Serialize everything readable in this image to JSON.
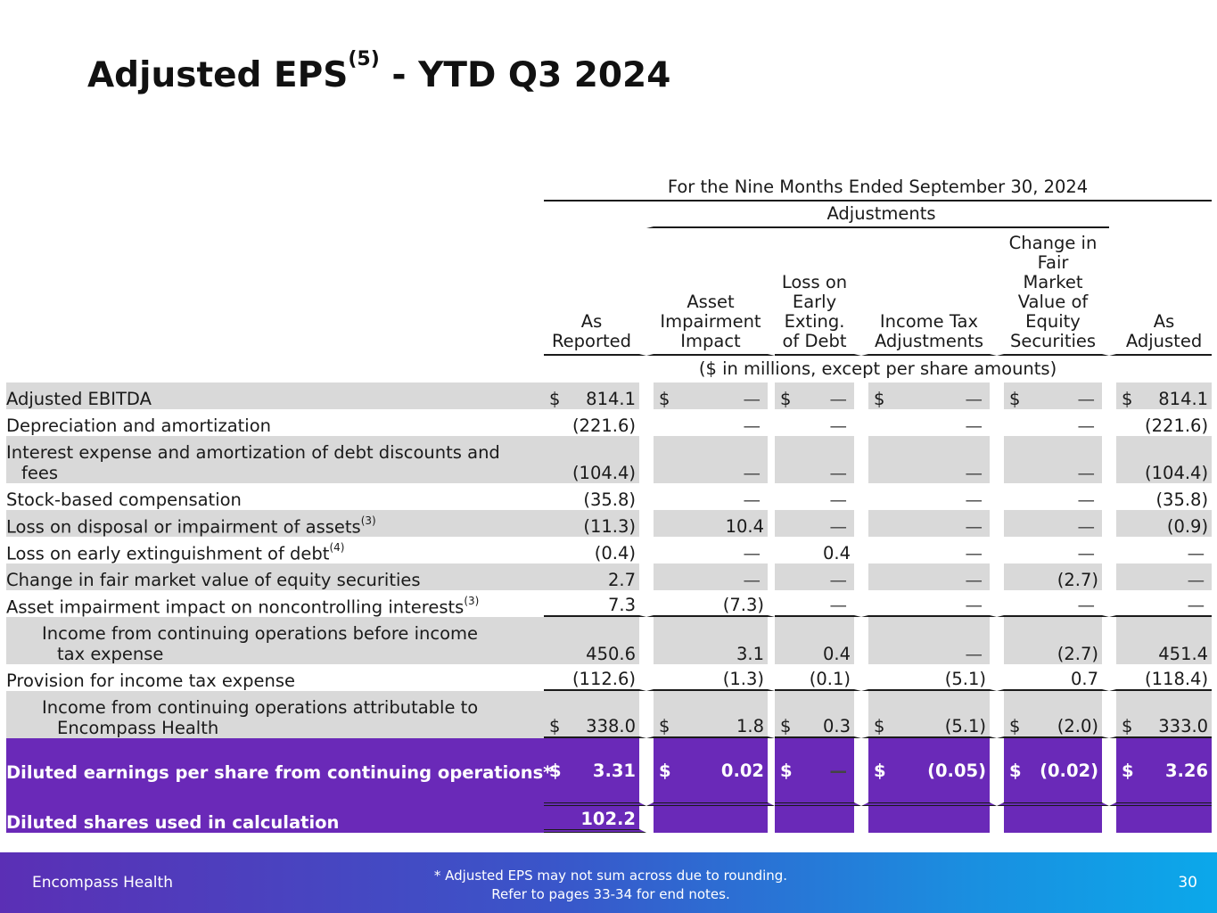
{
  "title": {
    "main": "Adjusted EPS",
    "sup": "(5)",
    "rest": " - YTD Q3 2024"
  },
  "header": {
    "period": "For the Nine Months Ended September 30, 2024",
    "adjustments": "Adjustments",
    "columns": [
      [
        "As",
        "Reported"
      ],
      [
        "Asset",
        "Impairment",
        "Impact"
      ],
      [
        "Loss on",
        "Early",
        "Exting.",
        "of Debt"
      ],
      [
        "Income Tax",
        "Adjustments"
      ],
      [
        "Change in",
        "Fair",
        "Market",
        "Value of",
        "Equity",
        "Securities"
      ],
      [
        "As",
        "Adjusted"
      ]
    ],
    "units": "($ in millions, except per share amounts)"
  },
  "rows": [
    {
      "label": "Adjusted EBITDA",
      "sup": "",
      "values": [
        "814.1",
        "—",
        "—",
        "—",
        "—",
        "814.1"
      ]
    },
    {
      "label": "Depreciation and amortization",
      "sup": "",
      "values": [
        "(221.6)",
        "—",
        "—",
        "—",
        "—",
        "(221.6)"
      ]
    },
    {
      "label": "Interest expense and amortization of debt discounts and",
      "label2": "fees",
      "sup": "",
      "values": [
        "(104.4)",
        "—",
        "—",
        "—",
        "—",
        "(104.4)"
      ]
    },
    {
      "label": "Stock-based compensation",
      "sup": "",
      "values": [
        "(35.8)",
        "—",
        "—",
        "—",
        "—",
        "(35.8)"
      ]
    },
    {
      "label": "Loss on disposal or impairment of assets",
      "sup": "(3)",
      "values": [
        "(11.3)",
        "10.4",
        "—",
        "—",
        "—",
        "(0.9)"
      ]
    },
    {
      "label": "Loss on early extinguishment of debt",
      "sup": "(4)",
      "values": [
        "(0.4)",
        "—",
        "0.4",
        "—",
        "—",
        "—"
      ]
    },
    {
      "label": "Change in fair market value of equity securities",
      "sup": "",
      "values": [
        "2.7",
        "—",
        "—",
        "—",
        "(2.7)",
        "—"
      ]
    },
    {
      "label": "Asset impairment impact on noncontrolling interests",
      "sup": "(3)",
      "values": [
        "7.3",
        "(7.3)",
        "—",
        "—",
        "—",
        "—"
      ]
    },
    {
      "label": "Income from continuing operations before income",
      "label2": "tax expense",
      "sup": "",
      "values": [
        "450.6",
        "3.1",
        "0.4",
        "—",
        "(2.7)",
        "451.4"
      ]
    },
    {
      "label": "Provision for income tax expense",
      "sup": "",
      "values": [
        "(112.6)",
        "(1.3)",
        "(0.1)",
        "(5.1)",
        "0.7",
        "(118.4)"
      ]
    },
    {
      "label": "Income from continuing operations attributable to",
      "label2": "Encompass Health",
      "sup": "",
      "values": [
        "338.0",
        "1.8",
        "0.3",
        "(5.1)",
        "(2.0)",
        "333.0"
      ]
    },
    {
      "label": "Diluted earnings per share from continuing operations*",
      "sup": "",
      "values": [
        "3.31",
        "0.02",
        "—",
        "(0.05)",
        "(0.02)",
        "3.26"
      ]
    },
    {
      "label": "Diluted shares used in calculation",
      "sup": "",
      "values": [
        "102.2"
      ]
    }
  ],
  "currency_symbol": "$",
  "footer": {
    "brand": "Encompass Health",
    "note1": "*  Adjusted EPS may not sum across due to rounding.",
    "note2": "Refer to pages 33-34 for end notes.",
    "page": "30"
  },
  "colors": {
    "purple_band": "#6a29b8",
    "gray_band": "#d9d9d9"
  }
}
